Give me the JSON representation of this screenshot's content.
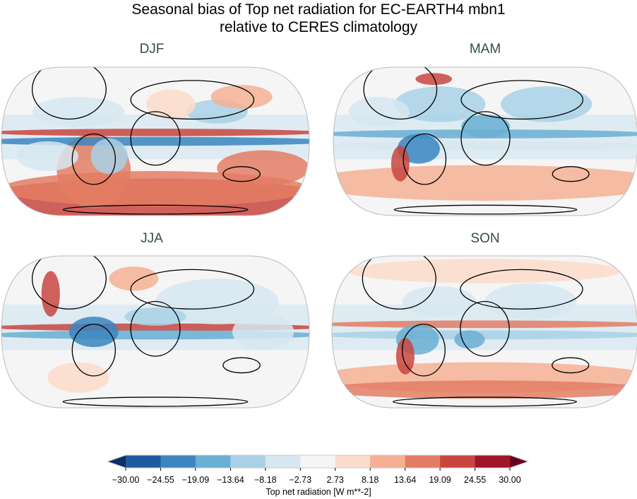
{
  "title_line1": "Seasonal bias of Top net radiation for EC-EARTH4 mbn1",
  "title_line2": "relative to CERES climatology",
  "panels": [
    {
      "title": "DJF"
    },
    {
      "title": "MAM"
    },
    {
      "title": "JJA"
    },
    {
      "title": "SON"
    }
  ],
  "colorbar": {
    "label": "Top net radiation [W m**-2]",
    "ticks": [
      "−30.00",
      "−24.55",
      "−19.09",
      "−13.64",
      "−8.18",
      "−2.73",
      "2.73",
      "8.18",
      "13.64",
      "19.09",
      "24.55",
      "30.00"
    ],
    "extend": "both",
    "colors": [
      "#1e5aa0",
      "#3a86bf",
      "#6aafd4",
      "#a8d1e6",
      "#d6e7f1",
      "#f5f5f5",
      "#fbdccb",
      "#f5b094",
      "#e37c64",
      "#c9453f",
      "#a01527"
    ],
    "under_color": "#0b3064",
    "over_color": "#67001f",
    "colormap": "RdBu_r"
  }
}
